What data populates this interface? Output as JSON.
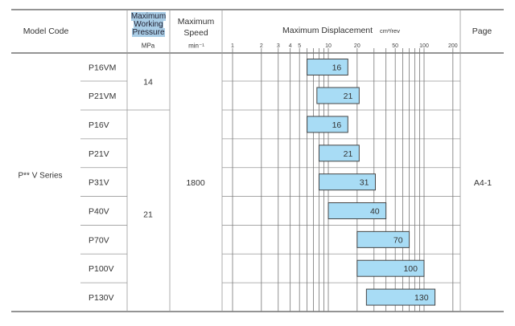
{
  "header": {
    "model_code": "Model Code",
    "pressure": [
      "Maximum",
      "Working",
      "Pressure"
    ],
    "pressure_unit": "MPa",
    "speed": [
      "Maximum",
      "Speed"
    ],
    "speed_unit": "min⁻¹",
    "displacement": "Maximum Displacement",
    "displacement_unit": "cm³/rev",
    "page": "Page"
  },
  "series_label": "P** V Series",
  "speed_value": "1800",
  "page_value": "A4-1",
  "pressure_groups": [
    {
      "value": "14",
      "rows": [
        "P16VM",
        "P21VM"
      ]
    },
    {
      "value": "21",
      "rows": [
        "P16V",
        "P21V",
        "P31V",
        "P40V",
        "P70V",
        "P100V",
        "P130V"
      ]
    }
  ],
  "chart_data": {
    "type": "bar",
    "orientation": "horizontal-range",
    "xscale": "log",
    "xlim": [
      1,
      200
    ],
    "xlabel": "Maximum Displacement",
    "xunit": "cm³/rev",
    "tick_labels": [
      "1",
      "2",
      "3",
      "4",
      "5",
      "10",
      "20",
      "50",
      "100",
      "200"
    ],
    "gridlines": [
      1,
      2,
      3,
      4,
      5,
      6,
      7,
      8,
      9,
      10,
      20,
      30,
      40,
      50,
      60,
      70,
      80,
      90,
      100,
      200
    ],
    "categories": [
      "P16VM",
      "P21VM",
      "P16V",
      "P21V",
      "P31V",
      "P40V",
      "P70V",
      "P100V",
      "P130V"
    ],
    "ranges": [
      [
        6,
        16
      ],
      [
        7.6,
        21
      ],
      [
        6,
        16
      ],
      [
        8,
        21
      ],
      [
        8,
        31
      ],
      [
        10,
        40
      ],
      [
        20,
        70
      ],
      [
        20,
        100
      ],
      [
        25,
        130
      ]
    ],
    "data_labels": [
      "16",
      "21",
      "16",
      "21",
      "31",
      "40",
      "70",
      "100",
      "130"
    ],
    "bar_color": "#a8dcf5"
  }
}
